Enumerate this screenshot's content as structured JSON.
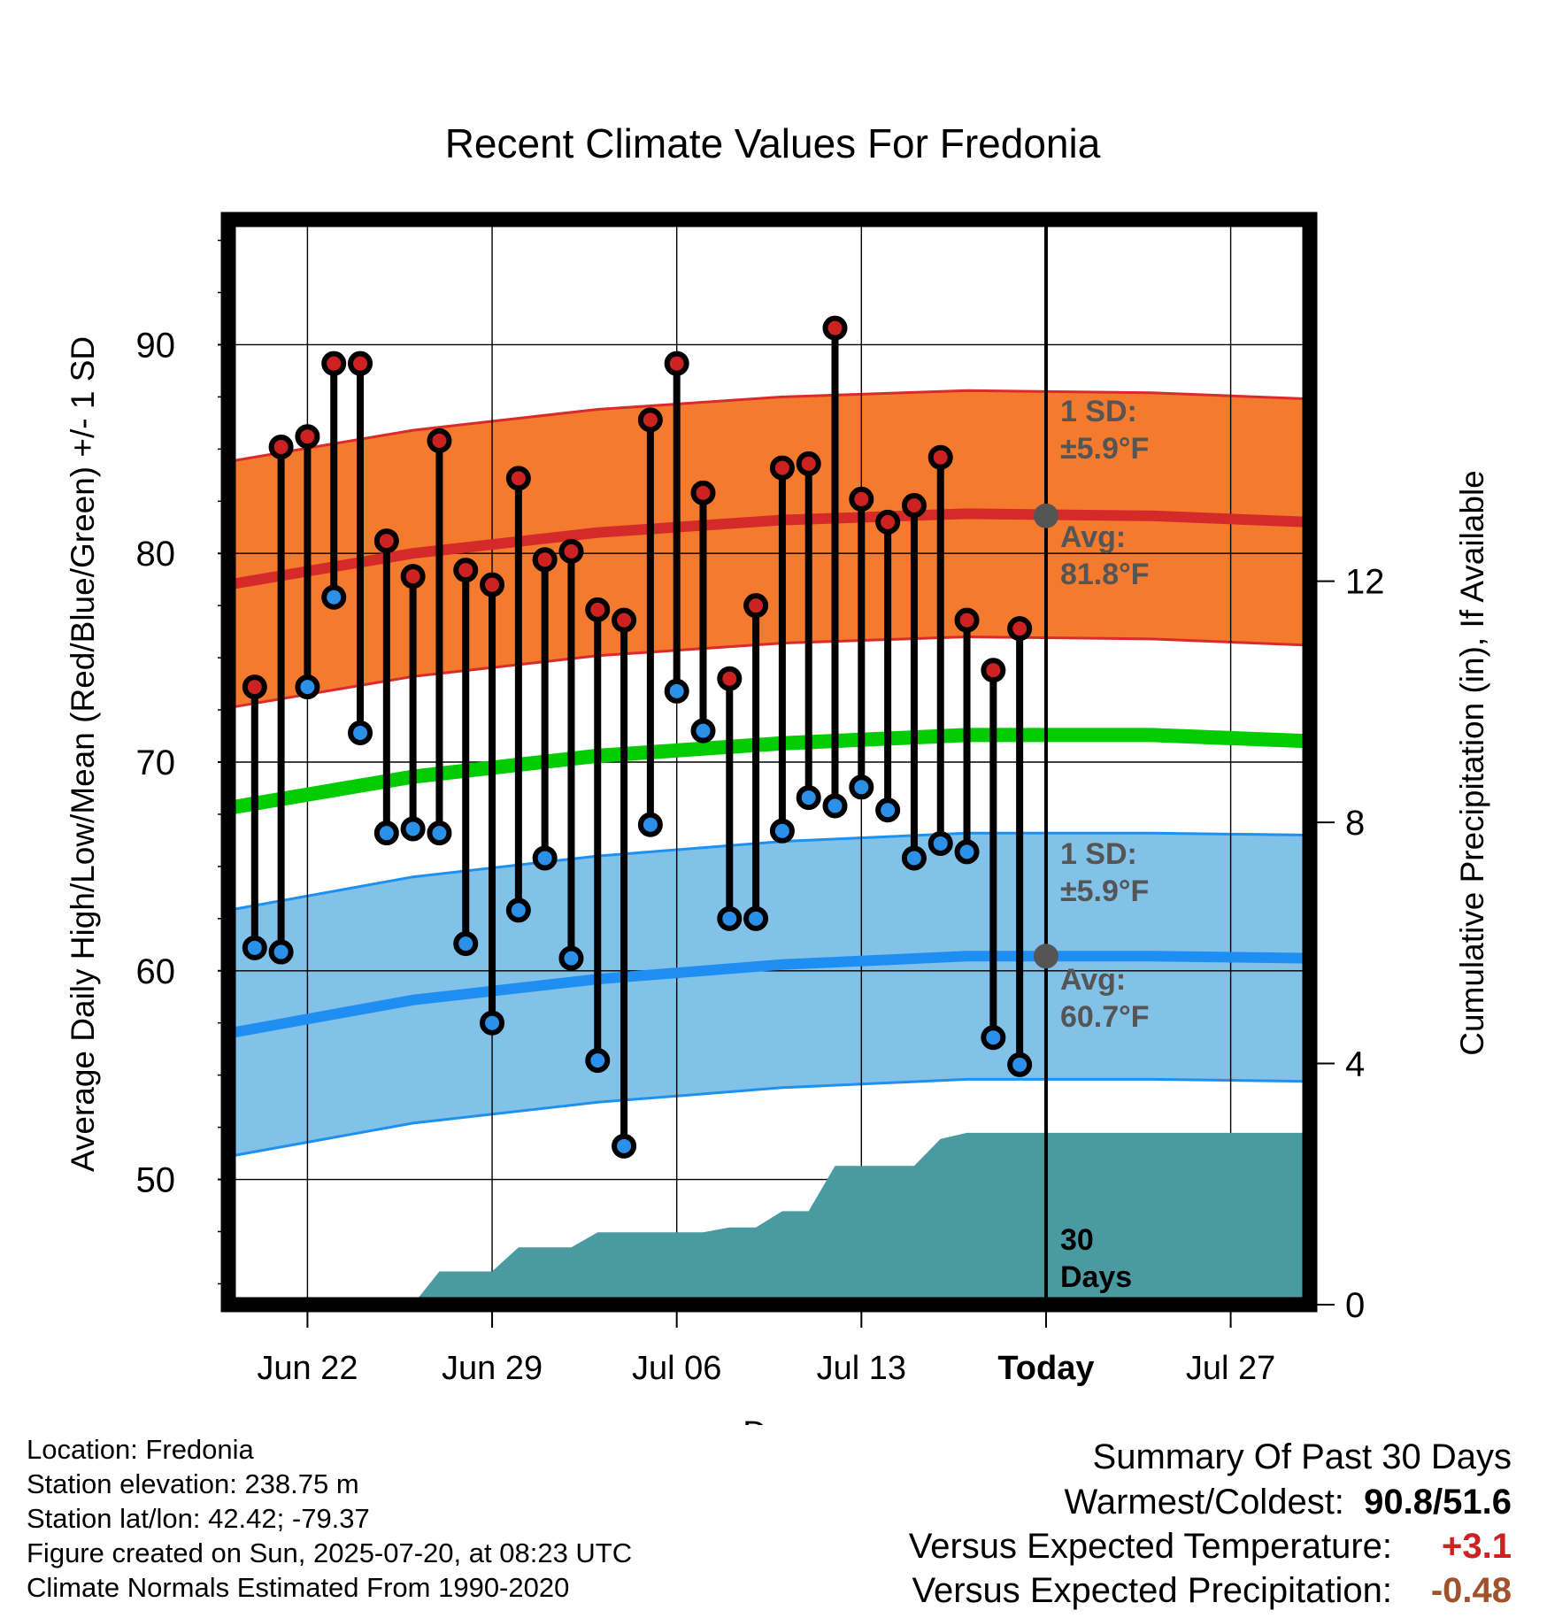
{
  "chart_data": {
    "type": "line",
    "title": "Recent Climate Values For Fredonia",
    "xlabel": "Day",
    "ylabel": "Average Daily High/Low/Mean (Red/Blue/Green) +/- 1 SD",
    "y2label": "Cumulative Precipitation (in), If Available",
    "x_tick_labels": [
      "Jun 22",
      "Jun 29",
      "Jul 06",
      "Jul 13",
      "Today",
      "Jul 27"
    ],
    "x_tick_dates": [
      "2025-06-22",
      "2025-06-29",
      "2025-07-06",
      "2025-07-13",
      "2025-07-20",
      "2025-07-27"
    ],
    "x_range": [
      "2025-06-19",
      "2025-07-30"
    ],
    "today": "2025-07-20",
    "ylim": [
      44,
      96
    ],
    "y_ticks": [
      50,
      60,
      70,
      80,
      90
    ],
    "y2lim": [
      0,
      18
    ],
    "y2_ticks": [
      0,
      4,
      8,
      12
    ],
    "grid": true,
    "colors": {
      "high_band": "#f47a2d",
      "high_band_edge": "#d92b2b",
      "high_avg": "#d42a2a",
      "low_band": "#82c1e8",
      "low_band_edge": "#1e90f0",
      "low_avg": "#1e8ef2",
      "mean": "#00cc00",
      "precip": "#4a9aa2",
      "high_marker": "#cc2222",
      "low_marker": "#2a90e8",
      "annotation_text": "#555555",
      "warm": "#cc2222",
      "precip_dev": "#a0522d"
    },
    "normals": {
      "dates": [
        "2025-06-19",
        "2025-06-26",
        "2025-07-03",
        "2025-07-10",
        "2025-07-17",
        "2025-07-24",
        "2025-07-30"
      ],
      "high_avg": [
        78.5,
        80.0,
        81.0,
        81.6,
        81.9,
        81.8,
        81.5
      ],
      "low_avg": [
        57.0,
        58.6,
        59.6,
        60.3,
        60.7,
        60.7,
        60.6
      ],
      "mean": [
        67.8,
        69.3,
        70.3,
        70.9,
        71.3,
        71.3,
        71.0
      ],
      "high_sd": 5.9,
      "low_sd": 5.9
    },
    "series": [
      {
        "name": "High",
        "dates": [
          "2025-06-20",
          "2025-06-21",
          "2025-06-22",
          "2025-06-23",
          "2025-06-24",
          "2025-06-25",
          "2025-06-26",
          "2025-06-27",
          "2025-06-28",
          "2025-06-29",
          "2025-06-30",
          "2025-07-01",
          "2025-07-02",
          "2025-07-03",
          "2025-07-04",
          "2025-07-05",
          "2025-07-06",
          "2025-07-07",
          "2025-07-08",
          "2025-07-09",
          "2025-07-10",
          "2025-07-11",
          "2025-07-12",
          "2025-07-13",
          "2025-07-14",
          "2025-07-15",
          "2025-07-16",
          "2025-07-17",
          "2025-07-18",
          "2025-07-19"
        ],
        "values": [
          73.6,
          85.1,
          85.6,
          89.1,
          89.1,
          80.6,
          78.9,
          85.4,
          79.2,
          78.5,
          83.6,
          79.7,
          80.1,
          77.3,
          76.8,
          86.4,
          89.1,
          82.9,
          74.0,
          77.5,
          84.1,
          84.3,
          90.8,
          82.6,
          81.5,
          82.3,
          84.6,
          76.8,
          74.4,
          76.4
        ]
      },
      {
        "name": "Low",
        "dates": [
          "2025-06-20",
          "2025-06-21",
          "2025-06-22",
          "2025-06-23",
          "2025-06-24",
          "2025-06-25",
          "2025-06-26",
          "2025-06-27",
          "2025-06-28",
          "2025-06-29",
          "2025-06-30",
          "2025-07-01",
          "2025-07-02",
          "2025-07-03",
          "2025-07-04",
          "2025-07-05",
          "2025-07-06",
          "2025-07-07",
          "2025-07-08",
          "2025-07-09",
          "2025-07-10",
          "2025-07-11",
          "2025-07-12",
          "2025-07-13",
          "2025-07-14",
          "2025-07-15",
          "2025-07-16",
          "2025-07-17",
          "2025-07-18",
          "2025-07-19"
        ],
        "values": [
          61.1,
          60.9,
          73.6,
          77.9,
          71.4,
          66.6,
          66.8,
          66.6,
          61.3,
          57.5,
          62.9,
          65.4,
          60.6,
          55.7,
          51.6,
          67.0,
          73.4,
          71.5,
          62.5,
          62.5,
          66.7,
          68.3,
          67.9,
          68.8,
          67.7,
          65.4,
          66.1,
          65.7,
          56.8,
          55.5
        ]
      },
      {
        "name": "Cumulative Precipitation",
        "dates": [
          "2025-06-19",
          "2025-06-26",
          "2025-06-27",
          "2025-06-29",
          "2025-06-30",
          "2025-07-02",
          "2025-07-03",
          "2025-07-07",
          "2025-07-08",
          "2025-07-09",
          "2025-07-10",
          "2025-07-11",
          "2025-07-12",
          "2025-07-15",
          "2025-07-16",
          "2025-07-17",
          "2025-07-30"
        ],
        "values": [
          0,
          0,
          0.55,
          0.55,
          0.95,
          0.95,
          1.2,
          1.2,
          1.28,
          1.28,
          1.55,
          1.55,
          2.3,
          2.3,
          2.75,
          2.85,
          2.85
        ]
      }
    ],
    "annotations": {
      "high_sd_label": [
        "1 SD:",
        "±5.9°F"
      ],
      "high_avg_label": [
        "Avg:",
        "81.8°F"
      ],
      "low_sd_label": [
        "1 SD:",
        "±5.9°F"
      ],
      "low_avg_label": [
        "Avg:",
        "60.7°F"
      ],
      "days_label": [
        "30",
        "Days"
      ],
      "high_avg_today": 81.8,
      "low_avg_today": 60.7
    }
  },
  "info": {
    "location": "Location: Fredonia",
    "elevation": "Station elevation: 238.75 m",
    "latlon": "Station lat/lon: 42.42; -79.37",
    "created": "Figure created on Sun, 2025-07-20, at 08:23 UTC",
    "normals": "Climate Normals Estimated From 1990-2020"
  },
  "summary": {
    "heading": "Summary Of Past 30 Days",
    "warmest_coldest_label": "Warmest/Coldest:",
    "warmest": "90.8",
    "slash": "/",
    "coldest": "51.6",
    "temp_label": "Versus Expected Temperature:",
    "temp_value": "+3.1",
    "precip_label": "Versus Expected Precipitation:",
    "precip_value": "-0.48"
  }
}
